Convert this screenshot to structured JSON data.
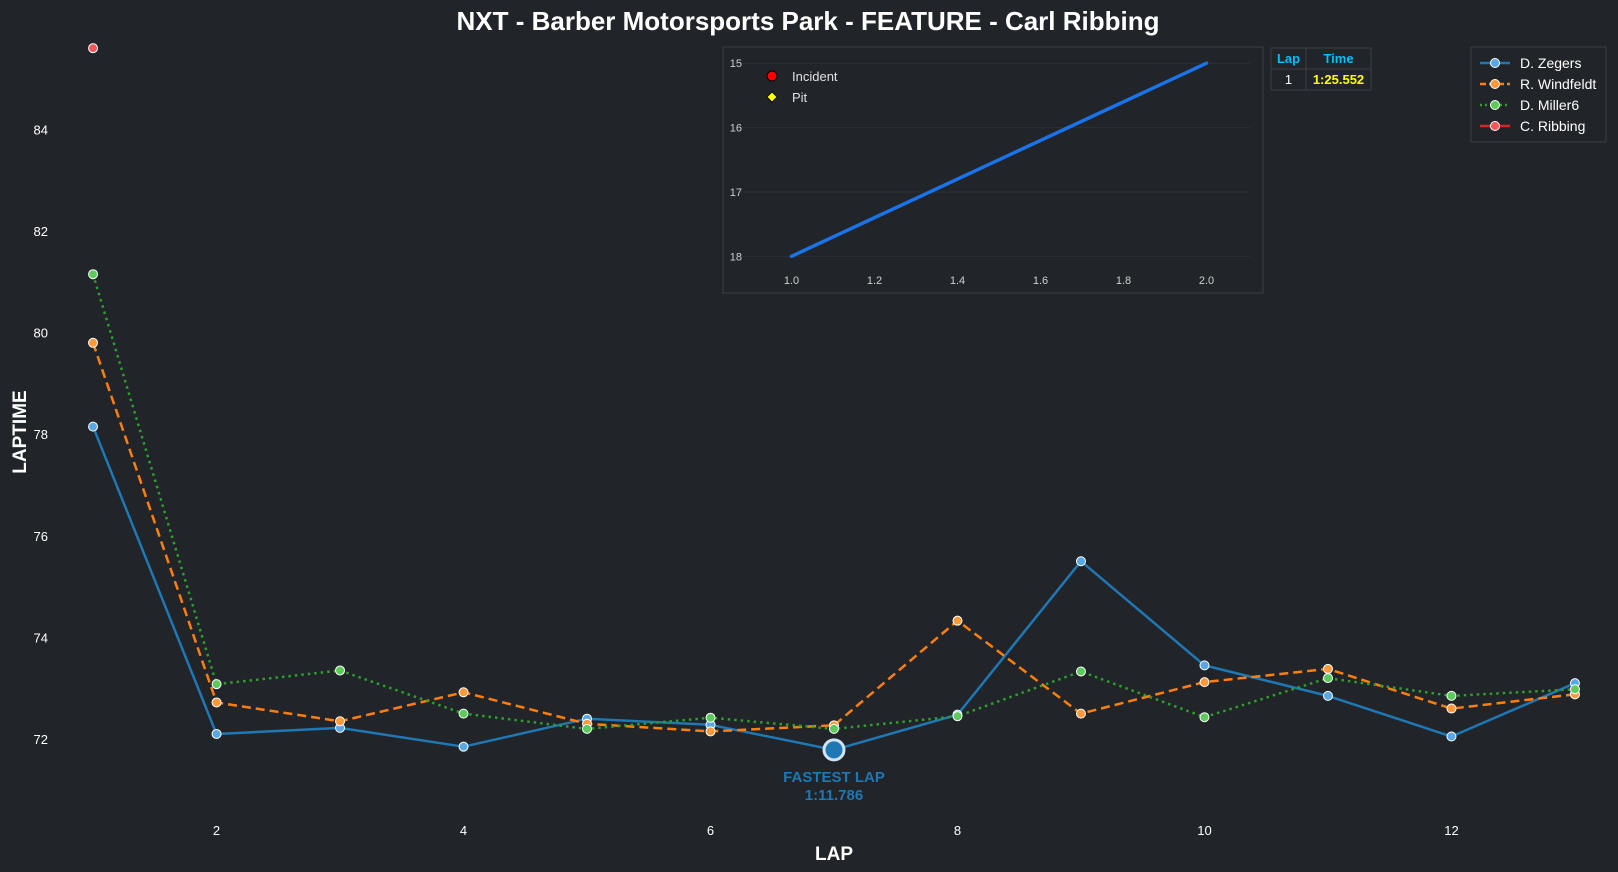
{
  "chart_data": {
    "type": "line",
    "title": "NXT - Barber Motorsports Park - FEATURE - Carl Ribbing",
    "xlabel": "LAP",
    "ylabel": "LAPTIME",
    "xlim": [
      0.7,
      13.3
    ],
    "ylim": [
      70.8,
      85.8
    ],
    "xticks": [
      2,
      4,
      6,
      8,
      10,
      12
    ],
    "yticks": [
      72,
      74,
      76,
      78,
      80,
      82,
      84
    ],
    "grid": false,
    "legend_position": "top-right",
    "series": [
      {
        "name": "D. Zegers",
        "color": "#1f77b4",
        "line_style": "solid",
        "x": [
          1,
          2,
          3,
          4,
          5,
          6,
          7,
          8,
          9,
          10,
          11,
          12,
          13
        ],
        "y": [
          78.15,
          72.1,
          72.22,
          71.85,
          72.4,
          72.28,
          71.786,
          72.48,
          75.5,
          73.45,
          72.85,
          72.05,
          73.1
        ]
      },
      {
        "name": "R. Windfeldt",
        "color": "#ff7f0e",
        "line_style": "dashed",
        "x": [
          1,
          2,
          3,
          4,
          5,
          6,
          7,
          8,
          9,
          10,
          11,
          12,
          13
        ],
        "y": [
          79.8,
          72.72,
          72.35,
          72.92,
          72.3,
          72.15,
          72.27,
          74.33,
          72.5,
          73.12,
          73.38,
          72.6,
          72.88
        ]
      },
      {
        "name": "D. Miller6",
        "color": "#2ca02c",
        "line_style": "dotted",
        "x": [
          1,
          2,
          3,
          4,
          5,
          6,
          7,
          8,
          9,
          10,
          11,
          12,
          13
        ],
        "y": [
          81.15,
          73.08,
          73.35,
          72.5,
          72.2,
          72.42,
          72.2,
          72.45,
          73.33,
          72.43,
          73.2,
          72.85,
          72.98
        ]
      },
      {
        "name": "C. Ribbing",
        "color": "#d62728",
        "line_style": "solid",
        "x": [
          1
        ],
        "y": [
          85.6
        ]
      }
    ],
    "annotation": {
      "label": "FASTEST LAP",
      "value": "1:11.786",
      "x": 7,
      "y": 71.786,
      "color": "#1f77b4"
    },
    "inset": {
      "xlim": [
        0.9,
        2.1
      ],
      "ylim": [
        18.15,
        14.95
      ],
      "xticks": [
        "1.0",
        "1.2",
        "1.4",
        "1.6",
        "1.8",
        "2.0"
      ],
      "yticks": [
        "15",
        "16",
        "17",
        "18"
      ],
      "line_color": "#1a73e8",
      "x": [
        1.0,
        2.0
      ],
      "y": [
        18,
        15
      ],
      "legend": [
        {
          "label": "Incident",
          "marker": "circle",
          "color": "#ff0000"
        },
        {
          "label": "Pit",
          "marker": "diamond",
          "color": "#ffff00"
        }
      ]
    },
    "table": {
      "headers": [
        "Lap",
        "Time"
      ],
      "rows": [
        [
          "1",
          "1:25.552"
        ]
      ],
      "header_color": "#00bfff",
      "time_color": "#ffff00"
    }
  }
}
